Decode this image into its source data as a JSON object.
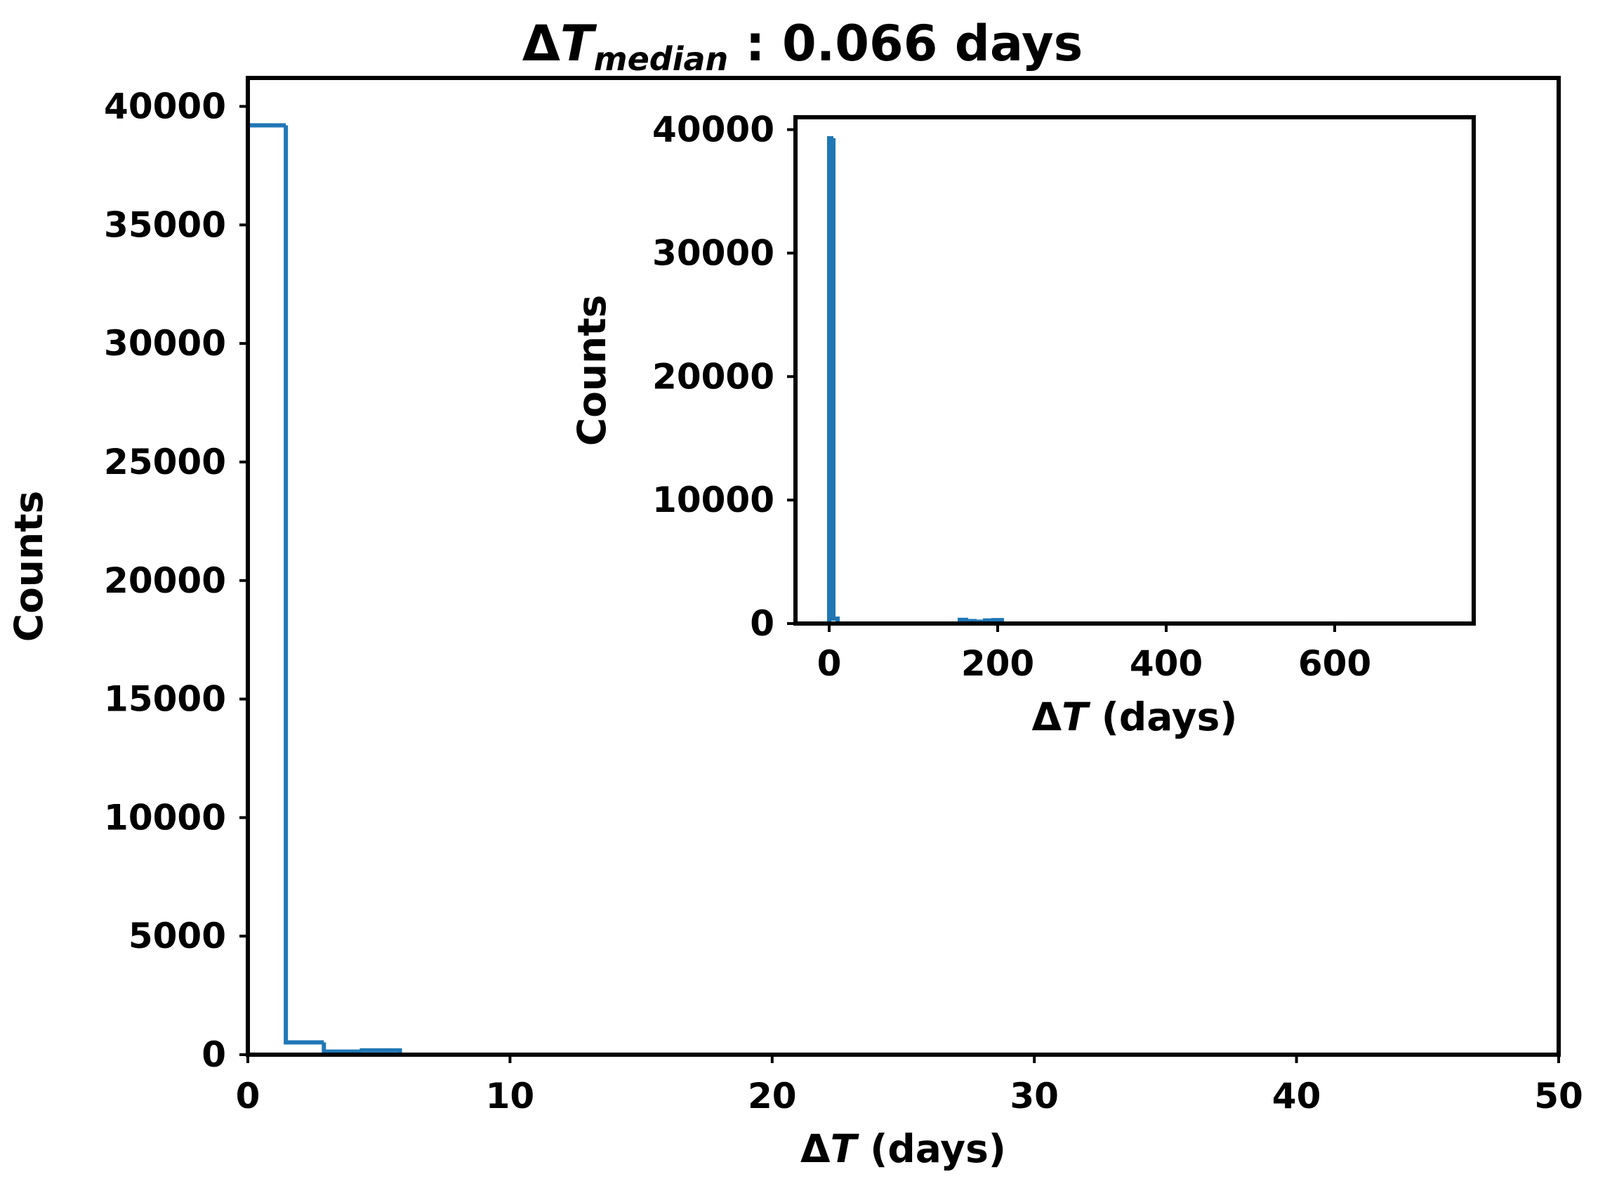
{
  "title": {
    "delta": "Δ",
    "symbol": "T",
    "subscript": "median",
    "rest": " : 0.066 days"
  },
  "chart_data": [
    {
      "type": "histogram",
      "role": "main",
      "xlabel_delta": "Δ",
      "xlabel_symbol": "T",
      "xlabel_rest": " (days)",
      "ylabel": "Counts",
      "xlim": [
        0,
        50
      ],
      "ylim": [
        0,
        41200
      ],
      "xticks": [
        0,
        10,
        20,
        30,
        40,
        50
      ],
      "yticks": [
        0,
        5000,
        10000,
        15000,
        20000,
        25000,
        30000,
        35000,
        40000
      ],
      "bins": [
        {
          "x0": 0,
          "x1": 1.45,
          "count": 39200
        },
        {
          "x0": 1.45,
          "x1": 2.9,
          "count": 520
        },
        {
          "x0": 2.9,
          "x1": 4.35,
          "count": 130
        },
        {
          "x0": 4.35,
          "x1": 5.8,
          "count": 180
        }
      ],
      "color": "#1f77b4",
      "style": "step",
      "grid": false
    },
    {
      "type": "histogram",
      "role": "inset",
      "xlabel_delta": "Δ",
      "xlabel_symbol": "T",
      "xlabel_rest": " (days)",
      "ylabel": "Counts",
      "xlim": [
        -40,
        765
      ],
      "ylim": [
        0,
        41000
      ],
      "xticks": [
        0,
        200,
        400,
        600
      ],
      "yticks": [
        0,
        10000,
        20000,
        30000,
        40000
      ],
      "bins": [
        {
          "x0": 0,
          "x1": 5,
          "count": 39300
        },
        {
          "x0": 5,
          "x1": 10,
          "count": 400
        },
        {
          "x0": 155,
          "x1": 165,
          "count": 300
        },
        {
          "x0": 165,
          "x1": 175,
          "count": 200
        },
        {
          "x0": 175,
          "x1": 185,
          "count": 150
        },
        {
          "x0": 185,
          "x1": 195,
          "count": 250
        },
        {
          "x0": 195,
          "x1": 205,
          "count": 280
        }
      ],
      "color": "#1f77b4",
      "style": "step",
      "grid": false
    }
  ]
}
